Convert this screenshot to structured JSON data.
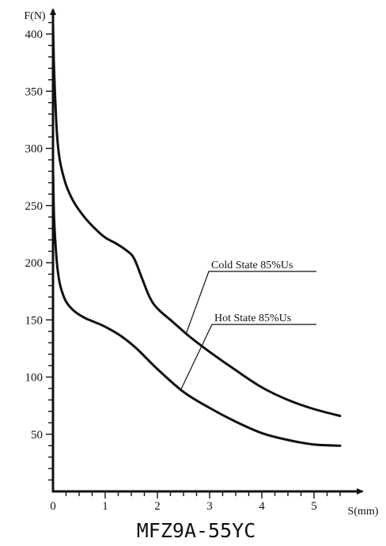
{
  "chart_data": {
    "type": "line",
    "title": "MFZ9A-55YC",
    "xlabel": "S(mm)",
    "ylabel": "F(N)",
    "xlim": [
      0,
      5.5
    ],
    "ylim": [
      0,
      420
    ],
    "x_ticks": [
      0,
      1,
      2,
      3,
      4,
      5
    ],
    "y_ticks": [
      50,
      100,
      150,
      200,
      250,
      300,
      350,
      400
    ],
    "grid": false,
    "series": [
      {
        "name": "Cold State 85%Us",
        "x": [
          0,
          0.02,
          0.06,
          0.1,
          0.15,
          0.25,
          0.4,
          0.6,
          0.8,
          1.0,
          1.2,
          1.4,
          1.55,
          1.7,
          1.85,
          2.0,
          2.3,
          2.6,
          3.0,
          3.5,
          4.0,
          4.5,
          5.0,
          5.5
        ],
        "y": [
          410,
          370,
          325,
          300,
          285,
          268,
          253,
          240,
          230,
          222,
          217,
          211,
          204,
          187,
          170,
          160,
          148,
          136,
          122,
          106,
          91,
          80,
          72,
          66
        ]
      },
      {
        "name": "Hot State 85%Us",
        "x": [
          0,
          0.02,
          0.06,
          0.1,
          0.15,
          0.25,
          0.4,
          0.6,
          0.8,
          1.0,
          1.3,
          1.6,
          2.0,
          2.5,
          3.0,
          3.5,
          4.0,
          4.5,
          5.0,
          5.5
        ],
        "y": [
          283,
          240,
          208,
          190,
          178,
          166,
          158,
          152,
          148,
          144,
          136,
          125,
          107,
          87,
          73,
          61,
          51,
          45,
          41,
          40
        ]
      }
    ],
    "annotations": [
      {
        "text": "Cold State 85%Us",
        "series": 0,
        "x": 2.55
      },
      {
        "text": "Hot State 85%Us",
        "series": 1,
        "x": 2.45
      }
    ]
  }
}
